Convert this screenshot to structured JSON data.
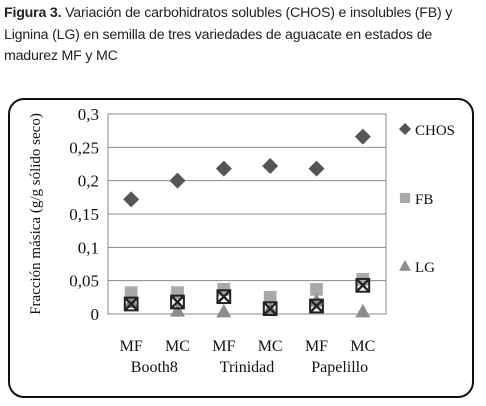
{
  "caption": {
    "label": "Figura 3.",
    "text": " Variación de carbohidratos solubles (CHOS) e insolubles (FB) y Lignina (LG) en semilla de tres variedades de aguacate en estados de madurez MF y MC"
  },
  "chart_data": {
    "type": "scatter",
    "title": "",
    "ylabel": "Fracción másica (g/g sólido seco)",
    "xlabel": "",
    "ylim": [
      0,
      0.3
    ],
    "yticks": [
      "0,3",
      "0,25",
      "0,2",
      "0,15",
      "0,1",
      "0,05",
      "0"
    ],
    "categories": [
      "MF",
      "MC",
      "MF",
      "MC",
      "MF",
      "MC"
    ],
    "groups": [
      "Booth8",
      "Trinidad",
      "Papelillo"
    ],
    "grid": "horizontal",
    "legend": "right",
    "series": [
      {
        "name": "CHOS",
        "marker": "diamond",
        "color": "#555555",
        "values": [
          0.172,
          0.2,
          0.218,
          0.222,
          0.218,
          0.266
        ]
      },
      {
        "name": "FB",
        "marker": "square",
        "color": "#a9a9a9",
        "values": [
          0.032,
          0.032,
          0.037,
          0.025,
          0.037,
          0.052
        ]
      },
      {
        "name": "LG",
        "marker": "triangle",
        "color": "#8c8c8c",
        "values": [
          0.018,
          0.005,
          0.004,
          0.008,
          0.02,
          0.004
        ]
      },
      {
        "name": "",
        "marker": "x-square",
        "color": "#222222",
        "values": [
          0.015,
          0.018,
          0.026,
          0.008,
          0.012,
          0.043
        ]
      }
    ]
  }
}
